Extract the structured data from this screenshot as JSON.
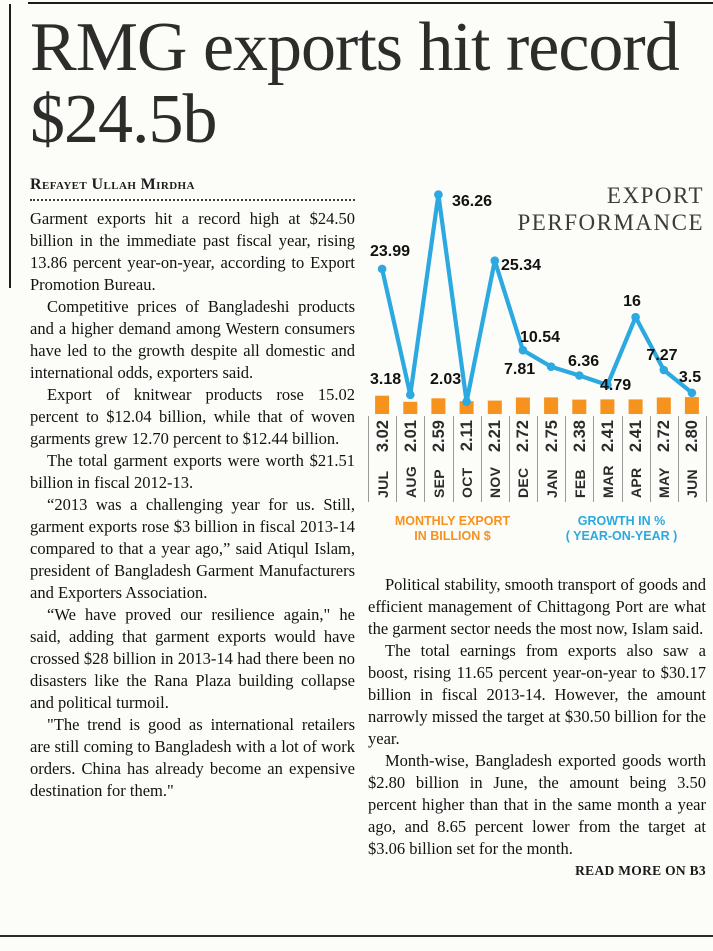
{
  "article": {
    "headline": "RMG exports hit record $24.5b",
    "byline": "Refayet Ullah Mirdha",
    "left_column": [
      "Garment exports hit a record high at $24.50 billion in the immediate past fiscal year, rising 13.86 percent year-on-year, according to Export Promotion Bureau.",
      "Competitive prices of Bangladeshi products and a higher demand among Western consumers have led to the growth despite all domestic and international odds, exporters said.",
      "Export of knitwear products rose 15.02 percent to $12.04 billion, while that of woven garments grew 12.70 percent to $12.44 billion.",
      "The total garment exports were worth $21.51 billion in fiscal 2012-13.",
      "“2013 was a challenging year for us. Still, garment exports rose $3 billion in fiscal 2013-14 compared to that a year ago,” said Atiqul Islam, president of Bangladesh Garment Manufacturers and Exporters Association.",
      "“We have proved our resilience again,\" he said, adding that garment exports would have crossed $28 billion in 2013-14 had there been no disasters like the Rana Plaza building collapse and political turmoil.",
      "\"The trend is good as international retailers are still coming to Bangladesh with a lot of work orders. China has already become an expensive destination for them.\""
    ],
    "right_column": [
      "Political stability, smooth transport of goods and efficient management of Chittagong Port are what the garment sector needs the most now, Islam said.",
      "The total earnings from exports also saw a boost, rising 11.65 percent year-on-year to $30.17 billion in fiscal 2013-14. However, the amount narrowly missed the target at $30.50 billion for the year.",
      "Month-wise, Bangladesh exported goods worth $2.80 billion in June, the amount being 3.50 percent higher than that in the same month a year ago, and 8.65 percent lower from the target at $3.06 billion set for the month."
    ],
    "read_more": "READ MORE ON B3"
  },
  "chart_data": {
    "type": "combo",
    "title": "EXPORT PERFORMANCE",
    "title_line1": "EXPORT",
    "title_line2": "PERFORMANCE",
    "categories": [
      "JUL",
      "AUG",
      "SEP",
      "OCT",
      "NOV",
      "DEC",
      "JAN",
      "FEB",
      "MAR",
      "APR",
      "MAY",
      "JUN"
    ],
    "series": [
      {
        "name": "MONTHLY EXPORT IN BILLION $",
        "type": "bar",
        "color": "#f6921e",
        "values": [
          3.02,
          2.01,
          2.59,
          2.11,
          2.21,
          2.72,
          2.75,
          2.38,
          2.41,
          2.41,
          2.72,
          2.8
        ],
        "labels": [
          "3.02",
          "2.01",
          "2.59",
          "2.11",
          "2.21",
          "2.72",
          "2.75",
          "2.38",
          "2.41",
          "2.41",
          "2.72",
          "2.80"
        ]
      },
      {
        "name": "GROWTH IN % (YEAR-ON-YEAR)",
        "type": "line",
        "color": "#2ba9e0",
        "values": [
          23.99,
          3.18,
          36.26,
          2.03,
          25.34,
          10.54,
          7.81,
          6.36,
          4.79,
          16,
          7.27,
          3.5
        ],
        "labels": [
          "23.99",
          "3.18",
          "36.26",
          "2.03",
          "25.34",
          "10.54",
          "7.81",
          "6.36",
          "4.79",
          "16",
          "7.27",
          "3.5"
        ]
      }
    ],
    "legend": {
      "bar": {
        "line1": "MONTHLY EXPORT",
        "line2": "IN BILLION $",
        "color": "#f6921e"
      },
      "line": {
        "line1": "GROWTH IN %",
        "line2": "( YEAR-ON-YEAR )",
        "color": "#2ba9e0"
      }
    },
    "ylim": [
      0,
      38
    ],
    "grid": false,
    "legend_position": "bottom"
  },
  "colors": {
    "bar_orange": "#f6921e",
    "line_blue": "#2ba9e0",
    "headline": "#2d2c2b",
    "rule": "#1c1c1c"
  }
}
